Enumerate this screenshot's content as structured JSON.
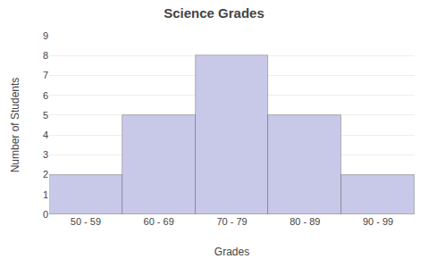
{
  "chart_data": {
    "type": "bar",
    "title": "Science Grades",
    "xlabel": "Grades",
    "ylabel": "Number of Students",
    "categories": [
      "50 - 59",
      "60 - 69",
      "70 - 79",
      "80 - 89",
      "90 - 99"
    ],
    "values": [
      2,
      5,
      8,
      5,
      2
    ],
    "color": "#c8c8e8",
    "ylim": [
      0,
      9
    ],
    "yticks": [
      0,
      1,
      2,
      3,
      4,
      5,
      6,
      7,
      8,
      9
    ],
    "grid": true
  }
}
